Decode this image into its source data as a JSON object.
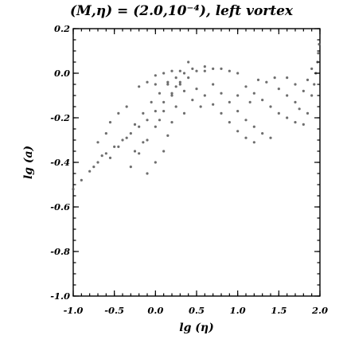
{
  "chart_data": {
    "type": "scatter",
    "title": "(M,η) = (2.0,10⁻⁴), left vortex",
    "xlabel": "lg (η)",
    "ylabel": "lg (a)",
    "xlim": [
      -1.0,
      2.0
    ],
    "ylim": [
      -1.0,
      0.2
    ],
    "x_ticks": [
      "-1.0",
      "-0.5",
      "0.0",
      "0.5",
      "1.0",
      "1.5",
      "2.0"
    ],
    "y_ticks": [
      "-1.0",
      "-0.8",
      "-0.6",
      "-0.4",
      "-0.2",
      "0.0",
      "0.2"
    ],
    "grid": false,
    "legend": "none",
    "marker_color": "#555555",
    "series": [
      {
        "points": [
          [
            -1.0,
            -0.52
          ],
          [
            -0.9,
            -0.48
          ],
          [
            -0.8,
            -0.44
          ],
          [
            -0.7,
            -0.4
          ],
          [
            -0.6,
            -0.36
          ],
          [
            -0.5,
            -0.33
          ],
          [
            -0.4,
            -0.3
          ],
          [
            -0.3,
            -0.27
          ],
          [
            -0.2,
            -0.24
          ],
          [
            -0.1,
            -0.21
          ],
          [
            0.0,
            -0.17
          ],
          [
            0.1,
            -0.13
          ],
          [
            0.2,
            -0.09
          ],
          [
            0.3,
            -0.05
          ],
          [
            0.4,
            -0.02
          ],
          [
            0.5,
            0.01
          ],
          [
            0.6,
            0.03
          ],
          [
            -0.3,
            -0.42
          ],
          [
            -0.2,
            -0.36
          ],
          [
            -0.1,
            -0.3
          ],
          [
            0.0,
            -0.24
          ],
          [
            0.1,
            -0.17
          ],
          [
            0.2,
            -0.1
          ],
          [
            0.3,
            -0.04
          ],
          [
            0.35,
            0.0
          ],
          [
            0.4,
            0.05
          ],
          [
            -0.55,
            -0.38
          ],
          [
            -0.45,
            -0.33
          ],
          [
            -0.35,
            -0.29
          ],
          [
            -0.25,
            -0.23
          ],
          [
            -0.15,
            -0.18
          ],
          [
            -0.05,
            -0.13
          ],
          [
            0.05,
            -0.09
          ],
          [
            0.15,
            -0.05
          ],
          [
            0.25,
            -0.02
          ],
          [
            -0.75,
            -0.42
          ],
          [
            -0.65,
            -0.37
          ],
          [
            -0.25,
            -0.35
          ],
          [
            -0.15,
            -0.31
          ],
          [
            0.05,
            -0.21
          ],
          [
            0.0,
            -0.01
          ],
          [
            0.1,
            0.0
          ],
          [
            0.2,
            0.01
          ],
          [
            0.3,
            0.01
          ],
          [
            0.45,
            0.02
          ],
          [
            0.6,
            0.01
          ],
          [
            0.7,
            0.02
          ],
          [
            0.8,
            0.02
          ],
          [
            0.9,
            0.01
          ],
          [
            1.0,
            0.0
          ],
          [
            0.5,
            -0.07
          ],
          [
            0.6,
            -0.1
          ],
          [
            0.7,
            -0.14
          ],
          [
            0.8,
            -0.18
          ],
          [
            0.9,
            -0.22
          ],
          [
            1.0,
            -0.26
          ],
          [
            1.1,
            -0.29
          ],
          [
            1.2,
            -0.31
          ],
          [
            0.7,
            -0.05
          ],
          [
            0.8,
            -0.09
          ],
          [
            0.9,
            -0.13
          ],
          [
            1.0,
            -0.17
          ],
          [
            1.1,
            -0.21
          ],
          [
            1.2,
            -0.24
          ],
          [
            1.3,
            -0.27
          ],
          [
            1.4,
            -0.29
          ],
          [
            1.1,
            -0.06
          ],
          [
            1.2,
            -0.09
          ],
          [
            1.3,
            -0.12
          ],
          [
            1.4,
            -0.15
          ],
          [
            1.5,
            -0.18
          ],
          [
            1.6,
            -0.2
          ],
          [
            1.7,
            -0.22
          ],
          [
            1.8,
            -0.23
          ],
          [
            1.5,
            -0.07
          ],
          [
            1.6,
            -0.1
          ],
          [
            1.7,
            -0.13
          ],
          [
            1.75,
            -0.16
          ],
          [
            1.85,
            -0.18
          ],
          [
            1.9,
            -0.1
          ],
          [
            1.93,
            -0.05
          ],
          [
            1.95,
            0.0
          ],
          [
            1.97,
            0.05
          ],
          [
            1.98,
            0.09
          ],
          [
            1.99,
            0.13
          ],
          [
            1.6,
            -0.02
          ],
          [
            1.7,
            -0.05
          ],
          [
            1.8,
            -0.08
          ],
          [
            1.85,
            -0.03
          ],
          [
            1.9,
            0.02
          ],
          [
            1.0,
            -0.1
          ],
          [
            1.15,
            -0.13
          ],
          [
            1.25,
            -0.03
          ],
          [
            1.35,
            -0.04
          ],
          [
            1.45,
            -0.02
          ],
          [
            -0.2,
            -0.06
          ],
          [
            -0.1,
            -0.04
          ],
          [
            0.0,
            -0.05
          ],
          [
            0.15,
            -0.04
          ],
          [
            0.25,
            -0.06
          ],
          [
            0.35,
            -0.08
          ],
          [
            0.45,
            -0.12
          ],
          [
            0.55,
            -0.15
          ],
          [
            0.35,
            -0.18
          ],
          [
            0.25,
            -0.15
          ],
          [
            -0.1,
            -0.45
          ],
          [
            0.0,
            -0.4
          ],
          [
            0.1,
            -0.35
          ],
          [
            0.15,
            -0.28
          ],
          [
            0.2,
            -0.22
          ],
          [
            -0.35,
            -0.15
          ],
          [
            -0.45,
            -0.18
          ],
          [
            -0.55,
            -0.22
          ],
          [
            -0.6,
            -0.27
          ],
          [
            -0.7,
            -0.31
          ]
        ]
      }
    ]
  }
}
